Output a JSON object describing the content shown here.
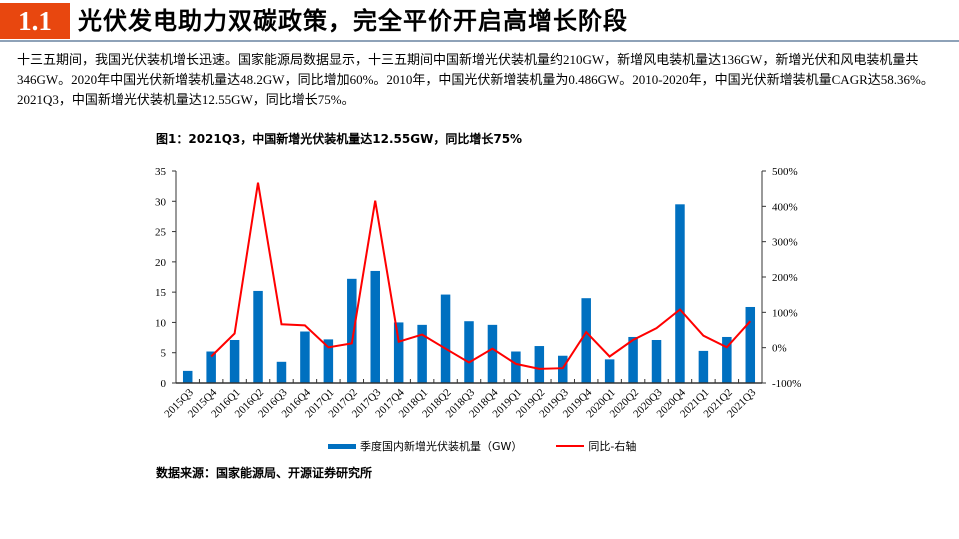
{
  "header": {
    "section_number": "1.1",
    "title": "光伏发电助力双碳政策，完全平价开启高增长阶段",
    "accent_color": "#e8470f"
  },
  "intro": {
    "text": "十三五期间，我国光伏装机增长迅速。国家能源局数据显示，十三五期间中国新增光伏装机量约210GW，新增风电装机量达136GW，新增光伏和风电装机量共346GW。2020年中国光伏新增装机量达48.2GW，同比增加60%。2010年，中国光伏新增装机量为0.486GW。2010-2020年，中国光伏新增装机量CAGR达58.36%。2021Q3，中国新增光伏装机量达12.55GW，同比增长75%。"
  },
  "figure": {
    "title": "图1：2021Q3，中国新增光伏装机量达12.55GW，同比增长75%",
    "source": "数据来源：国家能源局、开源证券研究所",
    "legend": {
      "bar_label": "季度国内新增光伏装机量（GW）",
      "line_label": "同比-右轴"
    }
  },
  "chart_data": {
    "type": "bar",
    "title": "图1：2021Q3，中国新增光伏装机量达12.55GW，同比增长75%",
    "xlabel": "",
    "ylabel": "季度国内新增光伏装机量（GW）",
    "y2label": "同比-右轴",
    "ylim": [
      0,
      35
    ],
    "y2lim": [
      -100,
      500
    ],
    "yticks": [
      0,
      5,
      10,
      15,
      20,
      25,
      30,
      35
    ],
    "y2ticks": [
      "-100%",
      "0%",
      "100%",
      "200%",
      "300%",
      "400%",
      "500%"
    ],
    "grid": false,
    "legend_position": "bottom",
    "categories": [
      "2015Q3",
      "2015Q4",
      "2016Q1",
      "2016Q2",
      "2016Q3",
      "2016Q4",
      "2017Q1",
      "2017Q2",
      "2017Q3",
      "2017Q4",
      "2018Q1",
      "2018Q2",
      "2018Q3",
      "2018Q4",
      "2019Q1",
      "2019Q2",
      "2019Q3",
      "2019Q4",
      "2020Q1",
      "2020Q2",
      "2020Q3",
      "2020Q4",
      "2021Q1",
      "2021Q2",
      "2021Q3"
    ],
    "series": [
      {
        "name": "季度国内新增光伏装机量（GW）",
        "type": "bar",
        "axis": "left",
        "color": "#0070c0",
        "values": [
          2.0,
          5.2,
          7.1,
          15.2,
          3.5,
          8.5,
          7.2,
          17.2,
          18.5,
          10.0,
          9.6,
          14.6,
          10.2,
          9.6,
          5.2,
          6.1,
          4.5,
          14.0,
          3.9,
          7.6,
          7.1,
          29.5,
          5.3,
          7.6,
          12.55
        ]
      },
      {
        "name": "同比-右轴",
        "type": "line",
        "axis": "right",
        "unit": "%",
        "color": "#ff0000",
        "values": [
          null,
          -25,
          40,
          467,
          66,
          63,
          1,
          12,
          416,
          17,
          37,
          -3,
          -42,
          -3,
          -46,
          -60,
          -58,
          44,
          -25,
          22,
          55,
          108,
          34,
          1,
          75
        ]
      }
    ]
  }
}
